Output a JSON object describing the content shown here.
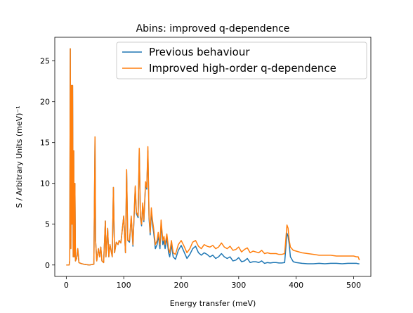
{
  "chart_data": {
    "type": "line",
    "title": "Abins: improved q-dependence",
    "xlabel": "Energy transfer (meV)",
    "ylabel": "S / Arbitrary Units (meV)⁻¹",
    "legend": "upper right",
    "xlim": [
      -20,
      530
    ],
    "ylim": [
      -1.4,
      27.9
    ],
    "xticks": [
      0,
      100,
      200,
      300,
      400,
      500
    ],
    "yticks": [
      0,
      5,
      10,
      15,
      20,
      25
    ],
    "x": [
      0,
      5,
      6,
      7,
      8,
      9,
      10,
      11,
      12,
      13,
      14,
      15,
      16,
      18,
      20,
      22,
      25,
      30,
      40,
      48,
      50,
      51,
      53,
      56,
      58,
      60,
      62,
      65,
      68,
      69,
      72,
      74,
      76,
      80,
      82,
      84,
      87,
      90,
      92,
      95,
      100,
      103,
      105,
      107,
      110,
      113,
      116,
      120,
      122,
      125,
      127,
      129,
      131,
      133,
      135,
      138,
      140,
      142,
      144,
      146,
      148,
      150,
      152,
      155,
      158,
      160,
      163,
      165,
      168,
      170,
      172,
      175,
      178,
      180,
      183,
      186,
      190,
      195,
      200,
      205,
      210,
      215,
      220,
      225,
      230,
      235,
      240,
      245,
      250,
      255,
      260,
      265,
      270,
      275,
      280,
      285,
      290,
      295,
      300,
      305,
      310,
      315,
      320,
      325,
      330,
      335,
      340,
      345,
      350,
      355,
      360,
      365,
      370,
      375,
      380,
      384,
      386,
      388,
      390,
      395,
      400,
      410,
      420,
      430,
      440,
      450,
      460,
      470,
      480,
      490,
      500,
      505,
      508,
      510
    ],
    "series": [
      {
        "name": "Previous behaviour",
        "color": "#1f77b4",
        "values": [
          0,
          0,
          0.5,
          26.5,
          2,
          22,
          5,
          22,
          1,
          14,
          1,
          10,
          0.5,
          0.8,
          2,
          0.3,
          0.2,
          0.1,
          0,
          0.1,
          15.7,
          3,
          0.5,
          2,
          1,
          2.2,
          0.5,
          0.3,
          5.4,
          1,
          4.5,
          1,
          2.5,
          1,
          9.5,
          1.5,
          2.8,
          2.5,
          3,
          2.7,
          6,
          1.5,
          11.6,
          3,
          2.8,
          5.8,
          2.3,
          9.5,
          6.3,
          5.8,
          14,
          5.8,
          4.8,
          7.4,
          5.3,
          10,
          9.3,
          14,
          5.7,
          3.7,
          6.5,
          5,
          4,
          2,
          2.5,
          3.6,
          2,
          5,
          2.5,
          3,
          2,
          3.3,
          1.5,
          1,
          2.5,
          1,
          0.7,
          1.8,
          2.4,
          1.6,
          0.8,
          1.3,
          2,
          2.3,
          1.5,
          1.2,
          1.5,
          1.3,
          1,
          1.2,
          0.8,
          1,
          1.4,
          1,
          0.8,
          1,
          0.5,
          0.6,
          0.9,
          0.4,
          0.5,
          0.8,
          0.3,
          0.4,
          0.4,
          0.3,
          0.5,
          0.2,
          0.3,
          0.25,
          0.3,
          0.3,
          0.25,
          0.25,
          0.3,
          3.9,
          3.5,
          2.5,
          1,
          0.4,
          0.3,
          0.2,
          0.15,
          0.15,
          0.2,
          0.15,
          0.2,
          0.2,
          0.15,
          0.2,
          0.2,
          0.2,
          0.15,
          0.15
        ]
      },
      {
        "name": "Improved high-order q-dependence",
        "color": "#ff7f0e",
        "values": [
          0,
          0,
          0.5,
          26.5,
          2,
          22,
          5,
          22,
          1,
          14,
          1,
          10,
          0.5,
          0.8,
          2,
          0.3,
          0.2,
          0.1,
          0,
          0.1,
          15.7,
          3,
          0.5,
          2,
          1,
          2.2,
          0.5,
          0.3,
          5.4,
          1,
          4.5,
          1,
          2.5,
          1,
          9.5,
          1.5,
          2.8,
          2.5,
          3,
          2.7,
          6,
          1.5,
          11.7,
          3,
          3,
          6,
          2.5,
          9.7,
          6.5,
          6,
          14.3,
          6,
          5,
          7.6,
          5.5,
          10.2,
          9.5,
          14.5,
          6,
          4,
          7,
          5.5,
          4.5,
          2.5,
          3,
          4,
          2.5,
          5.5,
          3,
          3.5,
          2.5,
          3.8,
          2,
          1.5,
          3,
          1.5,
          1.3,
          2.5,
          3,
          2.3,
          1.5,
          2,
          2.8,
          3,
          2.3,
          2,
          2.5,
          2.3,
          2.2,
          2.4,
          2,
          2.2,
          2.7,
          2.2,
          2,
          2.3,
          1.8,
          1.9,
          2.2,
          1.6,
          1.9,
          2.1,
          1.5,
          1.7,
          1.6,
          1.5,
          1.8,
          1.4,
          1.5,
          1.4,
          1.4,
          1.4,
          1.3,
          1.3,
          1.4,
          4.9,
          4.5,
          3,
          2.2,
          1.8,
          1.7,
          1.5,
          1.4,
          1.3,
          1.2,
          1.2,
          1.2,
          1.1,
          1.1,
          1.1,
          1.1,
          1,
          1,
          0.6
        ]
      }
    ]
  }
}
